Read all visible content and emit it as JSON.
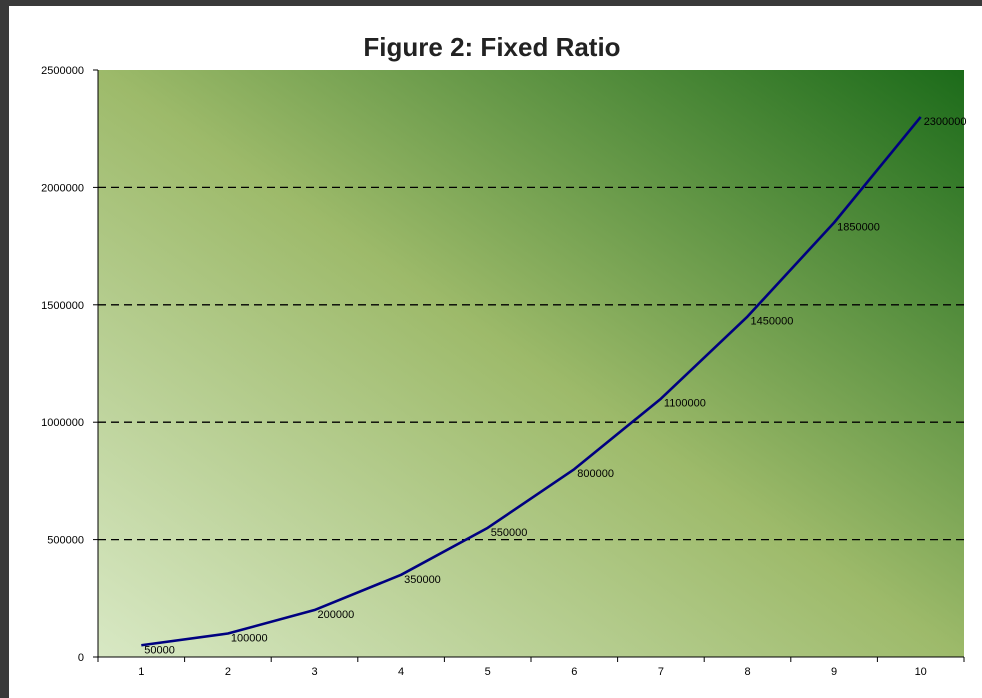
{
  "chart_data": {
    "type": "line",
    "title": "Figure 2:  Fixed Ratio",
    "xlabel": "",
    "ylabel": "",
    "x": [
      1,
      2,
      3,
      4,
      5,
      6,
      7,
      8,
      9,
      10
    ],
    "series": [
      {
        "values": [
          50000,
          100000,
          200000,
          350000,
          550000,
          800000,
          1100000,
          1450000,
          1850000,
          2300000
        ],
        "labels": [
          "50000",
          "100000",
          "200000",
          "350000",
          "550000",
          "800000",
          "1100000",
          "1450000",
          "1850000",
          "2300000"
        ],
        "color": "#000080"
      }
    ],
    "x_ticks": [
      "1",
      "2",
      "3",
      "4",
      "5",
      "6",
      "7",
      "8",
      "9",
      "10"
    ],
    "y_ticks": [
      "0",
      "500000",
      "1000000",
      "1500000",
      "2000000",
      "2500000"
    ],
    "y_tick_values": [
      0,
      500000,
      1000000,
      1500000,
      2000000,
      2500000
    ],
    "ylim": [
      0,
      2500000
    ],
    "xlim": [
      0.5,
      10.5
    ],
    "grid": "horizontal dashed",
    "legend": "none",
    "background_gradient": [
      "#d8e8c4",
      "#9dba6a",
      "#1c6b1a"
    ]
  }
}
